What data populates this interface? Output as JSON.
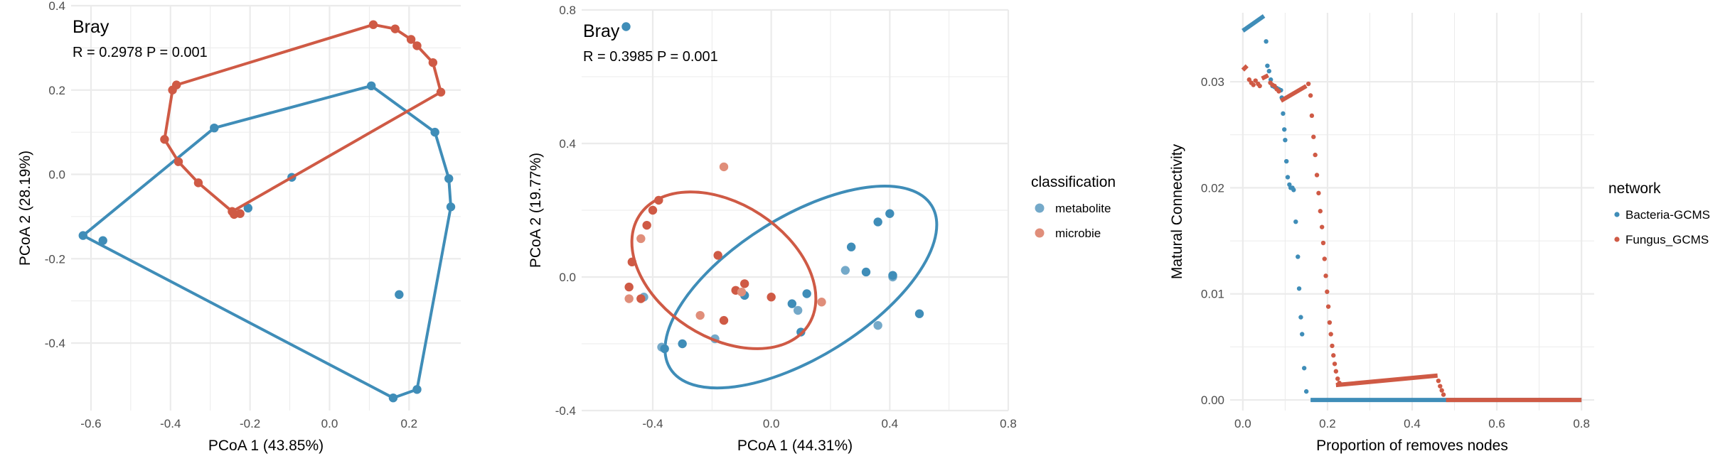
{
  "colors": {
    "blue": "#3F8DB8",
    "red": "#CF5A45",
    "blue_light": "#74A9C9",
    "red_light": "#E08E7A",
    "grid": "#EBEBEB"
  },
  "chart_data": [
    {
      "type": "scatter",
      "panel": "hull",
      "xlabel": "PCoA 1 (43.85%)",
      "ylabel": "PCoA 2 (28.19%)",
      "xlim": [
        -0.65,
        0.33
      ],
      "ylim": [
        -0.56,
        0.4
      ],
      "xticks": [
        -0.6,
        -0.4,
        -0.2,
        0.0,
        0.2
      ],
      "yticks": [
        -0.4,
        -0.2,
        0.0,
        0.2,
        0.4
      ],
      "x_tick_labels": [
        "-0.6",
        "-0.4",
        "-0.2",
        "0.0",
        "0.2"
      ],
      "y_tick_labels": [
        "-0.4",
        "-0.2",
        "0.0",
        "0.2",
        "0.4"
      ],
      "annotation": {
        "method": "Bray",
        "stat": "R = 0.2978    P = 0.001"
      },
      "series": [
        {
          "color": "blue",
          "points": [
            [
              -0.62,
              -0.145
            ],
            [
              -0.57,
              -0.157
            ],
            [
              -0.29,
              0.11
            ],
            [
              -0.205,
              -0.08
            ],
            [
              -0.095,
              -0.007
            ],
            [
              0.105,
              0.21
            ],
            [
              0.175,
              -0.285
            ],
            [
              0.16,
              -0.53
            ],
            [
              0.22,
              -0.51
            ],
            [
              0.265,
              0.1
            ],
            [
              0.3,
              -0.01
            ],
            [
              0.305,
              -0.077
            ]
          ],
          "hull": [
            [
              0.105,
              0.21
            ],
            [
              0.265,
              0.1
            ],
            [
              0.3,
              -0.01
            ],
            [
              0.305,
              -0.077
            ],
            [
              0.22,
              -0.51
            ],
            [
              0.16,
              -0.53
            ],
            [
              -0.62,
              -0.145
            ],
            [
              -0.29,
              0.11
            ],
            [
              0.105,
              0.21
            ]
          ]
        },
        {
          "color": "red",
          "points": [
            [
              0.11,
              0.355
            ],
            [
              0.165,
              0.345
            ],
            [
              0.205,
              0.32
            ],
            [
              0.22,
              0.305
            ],
            [
              0.26,
              0.265
            ],
            [
              0.28,
              0.195
            ],
            [
              -0.385,
              0.212
            ],
            [
              -0.395,
              0.2
            ],
            [
              -0.415,
              0.083
            ],
            [
              -0.38,
              0.03
            ],
            [
              -0.33,
              -0.02
            ],
            [
              -0.245,
              -0.088
            ],
            [
              -0.24,
              -0.095
            ],
            [
              -0.225,
              -0.093
            ]
          ],
          "hull": [
            [
              0.11,
              0.355
            ],
            [
              0.165,
              0.345
            ],
            [
              0.205,
              0.32
            ],
            [
              0.22,
              0.305
            ],
            [
              0.26,
              0.265
            ],
            [
              0.28,
              0.195
            ],
            [
              -0.245,
              -0.088
            ],
            [
              -0.33,
              -0.02
            ],
            [
              -0.38,
              0.03
            ],
            [
              -0.415,
              0.083
            ],
            [
              -0.395,
              0.2
            ],
            [
              -0.385,
              0.212
            ],
            [
              0.11,
              0.355
            ]
          ]
        }
      ]
    },
    {
      "type": "scatter",
      "panel": "ellipse",
      "xlabel": "PCoA 1 (44.31%)",
      "ylabel": "PCoA 2 (19.77%)",
      "xlim": [
        -0.64,
        0.8
      ],
      "ylim": [
        -0.4,
        0.8
      ],
      "xticks": [
        -0.4,
        0.0,
        0.4,
        0.8
      ],
      "yticks": [
        -0.4,
        0.0,
        0.4,
        0.8
      ],
      "x_tick_labels": [
        "-0.4",
        "0.0",
        "0.4",
        "0.8"
      ],
      "y_tick_labels": [
        "-0.4",
        "0.0",
        "0.4",
        "0.8"
      ],
      "annotation": {
        "method": "Bray",
        "stat": "R = 0.3985    P = 0.001"
      },
      "legend": {
        "title": "classification",
        "position": "right",
        "items": [
          {
            "label": "metabolite",
            "color": "blue_light"
          },
          {
            "label": "microbie",
            "color": "red_light"
          }
        ]
      },
      "series": [
        {
          "color": "blue",
          "ellipse": {
            "cx": 0.1,
            "cy": -0.03,
            "rx": 0.52,
            "ry": 0.21,
            "angle_deg": 32
          },
          "points": [
            [
              -0.49,
              0.75
            ],
            [
              -0.37,
              -0.21
            ],
            [
              -0.36,
              -0.215
            ],
            [
              -0.3,
              -0.2
            ],
            [
              -0.19,
              -0.185
            ],
            [
              -0.09,
              -0.055
            ],
            [
              0.07,
              -0.08
            ],
            [
              0.09,
              -0.1
            ],
            [
              0.1,
              -0.165
            ],
            [
              0.12,
              -0.05
            ],
            [
              0.25,
              0.02
            ],
            [
              0.27,
              0.09
            ],
            [
              0.32,
              0.015
            ],
            [
              0.36,
              -0.145
            ],
            [
              0.36,
              0.165
            ],
            [
              0.4,
              0.19
            ],
            [
              0.41,
              0.0
            ],
            [
              0.41,
              0.005
            ],
            [
              0.5,
              -0.11
            ],
            [
              -0.43,
              -0.06
            ]
          ]
        },
        {
          "color": "red",
          "ellipse": {
            "cx": -0.16,
            "cy": 0.02,
            "rx": 0.34,
            "ry": 0.2,
            "angle_deg": -33
          },
          "points": [
            [
              -0.38,
              0.23
            ],
            [
              -0.16,
              0.33
            ],
            [
              -0.4,
              0.2
            ],
            [
              -0.42,
              0.155
            ],
            [
              -0.44,
              0.115
            ],
            [
              -0.47,
              0.045
            ],
            [
              -0.48,
              -0.03
            ],
            [
              -0.48,
              -0.065
            ],
            [
              -0.44,
              -0.065
            ],
            [
              -0.18,
              0.065
            ],
            [
              -0.24,
              -0.115
            ],
            [
              -0.16,
              -0.13
            ],
            [
              -0.12,
              -0.04
            ],
            [
              -0.1,
              -0.045
            ],
            [
              -0.09,
              -0.02
            ],
            [
              0.0,
              -0.06
            ],
            [
              0.17,
              -0.075
            ]
          ]
        }
      ]
    },
    {
      "type": "scatter",
      "panel": "robustness",
      "xlabel": "Proportion of removes nodes",
      "ylabel": "Matural Connectivity",
      "xlim": [
        -0.03,
        0.83
      ],
      "ylim": [
        -0.001,
        0.0365
      ],
      "xticks": [
        0.0,
        0.2,
        0.4,
        0.6,
        0.8
      ],
      "yticks": [
        0.0,
        0.01,
        0.02,
        0.03
      ],
      "x_tick_labels": [
        "0.0",
        "0.2",
        "0.4",
        "0.6",
        "0.8"
      ],
      "y_tick_labels": [
        "0.00",
        "0.01",
        "0.02",
        "0.03"
      ],
      "legend": {
        "title": "network",
        "position": "right",
        "items": [
          {
            "label": "Bacteria-GCMS",
            "color": "blue"
          },
          {
            "label": "Fungus_GCMS",
            "color": "red"
          }
        ]
      },
      "series": [
        {
          "name": "Bacteria-GCMS",
          "color": "blue",
          "segments": [
            [
              [
                0.0,
                0.0348
              ],
              [
                0.05,
                0.0362
              ]
            ],
            [
              [
                0.16,
                0.0
              ],
              [
                0.8,
                0.0
              ]
            ]
          ],
          "points": [
            [
              0.055,
              0.0338
            ],
            [
              0.058,
              0.0315
            ],
            [
              0.062,
              0.031
            ],
            [
              0.066,
              0.0302
            ],
            [
              0.07,
              0.0296
            ],
            [
              0.075,
              0.0295
            ],
            [
              0.08,
              0.0294
            ],
            [
              0.085,
              0.0293
            ],
            [
              0.09,
              0.0292
            ],
            [
              0.092,
              0.0285
            ],
            [
              0.095,
              0.027
            ],
            [
              0.098,
              0.0255
            ],
            [
              0.1,
              0.0245
            ],
            [
              0.103,
              0.0225
            ],
            [
              0.106,
              0.021
            ],
            [
              0.11,
              0.0203
            ],
            [
              0.113,
              0.02
            ],
            [
              0.117,
              0.02
            ],
            [
              0.12,
              0.0198
            ],
            [
              0.125,
              0.0168
            ],
            [
              0.13,
              0.0135
            ],
            [
              0.133,
              0.0105
            ],
            [
              0.137,
              0.0078
            ],
            [
              0.14,
              0.0062
            ],
            [
              0.145,
              0.003
            ],
            [
              0.15,
              0.0008
            ]
          ]
        },
        {
          "name": "Fungus_GCMS",
          "color": "red",
          "segments": [
            [
              [
                0.0,
                0.0311
              ],
              [
                0.01,
                0.0315
              ]
            ],
            [
              [
                0.045,
                0.0303
              ],
              [
                0.06,
                0.0306
              ]
            ],
            [
              [
                0.09,
                0.0282
              ],
              [
                0.15,
                0.0296
              ]
            ],
            [
              [
                0.22,
                0.0014
              ],
              [
                0.46,
                0.0023
              ]
            ],
            [
              [
                0.48,
                0.0
              ],
              [
                0.8,
                0.0
              ]
            ]
          ],
          "points": [
            [
              0.015,
              0.0302
            ],
            [
              0.02,
              0.0299
            ],
            [
              0.025,
              0.0297
            ],
            [
              0.03,
              0.0301
            ],
            [
              0.036,
              0.0298
            ],
            [
              0.04,
              0.0296
            ],
            [
              0.065,
              0.0299
            ],
            [
              0.07,
              0.0297
            ],
            [
              0.075,
              0.0296
            ],
            [
              0.08,
              0.0293
            ],
            [
              0.085,
              0.0291
            ],
            [
              0.155,
              0.0298
            ],
            [
              0.16,
              0.0287
            ],
            [
              0.163,
              0.0268
            ],
            [
              0.167,
              0.0248
            ],
            [
              0.171,
              0.0231
            ],
            [
              0.175,
              0.0212
            ],
            [
              0.179,
              0.0195
            ],
            [
              0.183,
              0.0178
            ],
            [
              0.187,
              0.0163
            ],
            [
              0.19,
              0.0148
            ],
            [
              0.193,
              0.0133
            ],
            [
              0.196,
              0.0117
            ],
            [
              0.199,
              0.0102
            ],
            [
              0.202,
              0.0088
            ],
            [
              0.205,
              0.0073
            ],
            [
              0.208,
              0.0062
            ],
            [
              0.211,
              0.0051
            ],
            [
              0.214,
              0.0042
            ],
            [
              0.217,
              0.0034
            ],
            [
              0.22,
              0.0027
            ],
            [
              0.224,
              0.002
            ],
            [
              0.228,
              0.0016
            ],
            [
              0.462,
              0.0018
            ],
            [
              0.466,
              0.0013
            ],
            [
              0.47,
              0.0009
            ],
            [
              0.474,
              0.0005
            ]
          ]
        }
      ]
    }
  ]
}
